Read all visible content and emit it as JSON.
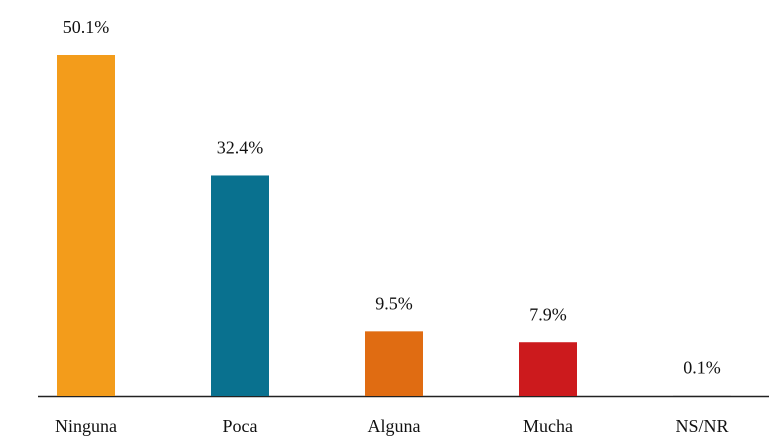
{
  "chart_data": {
    "type": "bar",
    "categories": [
      "Ninguna",
      "Poca",
      "Alguna",
      "Mucha",
      "NS/NR"
    ],
    "values": [
      50.1,
      32.4,
      9.5,
      7.9,
      0.1
    ],
    "value_labels": [
      "50.1%",
      "32.4%",
      "9.5%",
      "7.9%",
      "0.1%"
    ],
    "colors": [
      "#f39c1b",
      "#09718f",
      "#e06c12",
      "#cc1a1d",
      "#9e9e9e"
    ]
  }
}
